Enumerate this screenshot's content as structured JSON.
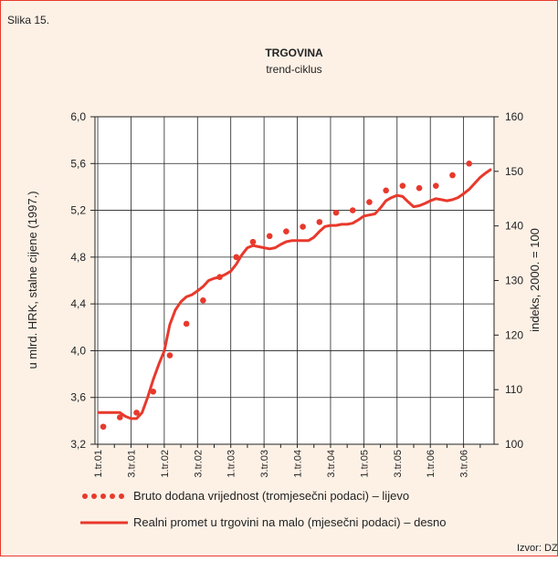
{
  "chart_data": {
    "type": "line",
    "figure_label": "Slika 15.",
    "title": "TRGOVINA",
    "subtitle": "trend-ciklus",
    "y_label": "u mlrd. HRK, stalne cijene (1997.)",
    "y2_label": "indeks, 2000. = 100",
    "source": "Izvor: DZS",
    "categories": [
      "1.tr.01",
      null,
      null,
      null,
      null,
      null,
      "3.tr.01",
      null,
      null,
      null,
      null,
      null,
      "1.tr.02",
      null,
      null,
      null,
      null,
      null,
      "3.tr.02",
      null,
      null,
      null,
      null,
      null,
      "1.tr.03",
      null,
      null,
      null,
      null,
      null,
      "3.tr.03",
      null,
      null,
      null,
      null,
      null,
      "1.tr.04",
      null,
      null,
      null,
      null,
      null,
      "3.tr.04",
      null,
      null,
      null,
      null,
      null,
      "1.tr.05",
      null,
      null,
      null,
      null,
      null,
      "3.tr.05",
      null,
      null,
      null,
      null,
      null,
      "1.tr.06",
      null,
      null,
      null,
      null,
      null,
      "3.tr.06",
      null,
      null,
      null,
      null,
      null
    ],
    "series": [
      {
        "name": "Bruto dodana vrijednost (tromjesečni podaci) – lijevo",
        "color": "#e8392c",
        "marker": "dots",
        "axis": "y",
        "values": [
          null,
          3.35,
          null,
          null,
          3.43,
          null,
          null,
          3.47,
          null,
          null,
          3.65,
          null,
          null,
          3.96,
          null,
          null,
          4.23,
          null,
          null,
          4.43,
          null,
          null,
          4.63,
          null,
          null,
          4.8,
          null,
          null,
          4.93,
          null,
          null,
          4.98,
          null,
          null,
          5.02,
          null,
          null,
          5.06,
          null,
          null,
          5.1,
          null,
          null,
          5.18,
          null,
          null,
          5.2,
          null,
          null,
          5.27,
          null,
          null,
          5.37,
          null,
          null,
          5.41,
          null,
          null,
          5.39,
          null,
          null,
          5.41,
          null,
          null,
          5.5,
          null,
          null,
          5.6,
          null,
          null,
          null,
          null
        ]
      },
      {
        "name": "Realni promet u trgovini na malo (mjesečni podaci)  – desno",
        "color": "#e8392c",
        "marker": "line",
        "axis": "y2",
        "values": [
          105.8,
          105.8,
          105.8,
          105.8,
          105.8,
          105.1,
          104.7,
          104.7,
          105.8,
          108.6,
          111.8,
          114.6,
          117.1,
          121.9,
          124.6,
          126.1,
          127.0,
          127.4,
          128.1,
          128.9,
          130.0,
          130.4,
          130.6,
          131.1,
          131.7,
          133.0,
          134.7,
          136.0,
          136.4,
          136.2,
          136.0,
          135.8,
          136.0,
          136.6,
          137.1,
          137.3,
          137.3,
          137.3,
          137.3,
          137.9,
          139.0,
          139.9,
          140.1,
          140.1,
          140.3,
          140.3,
          140.5,
          141.1,
          141.8,
          142.0,
          142.2,
          143.3,
          144.6,
          145.2,
          145.6,
          145.4,
          144.4,
          143.5,
          143.7,
          144.1,
          144.6,
          145.0,
          144.8,
          144.6,
          144.8,
          145.2,
          145.9,
          146.7,
          147.8,
          148.9,
          149.7,
          150.4
        ]
      }
    ],
    "ylim": [
      3.2,
      6.0
    ],
    "yticks": [
      {
        "value": 3.2,
        "label": "3,2"
      },
      {
        "value": 3.6,
        "label": "3,6"
      },
      {
        "value": 4.0,
        "label": "4,0"
      },
      {
        "value": 4.4,
        "label": "4,4"
      },
      {
        "value": 4.8,
        "label": "4,8"
      },
      {
        "value": 5.2,
        "label": "5,2"
      },
      {
        "value": 5.6,
        "label": "5,6"
      },
      {
        "value": 6.0,
        "label": "6,0"
      }
    ],
    "y2lim": [
      100,
      160
    ],
    "y2ticks": [
      100,
      110,
      120,
      130,
      140,
      150,
      160
    ],
    "grid": true
  }
}
